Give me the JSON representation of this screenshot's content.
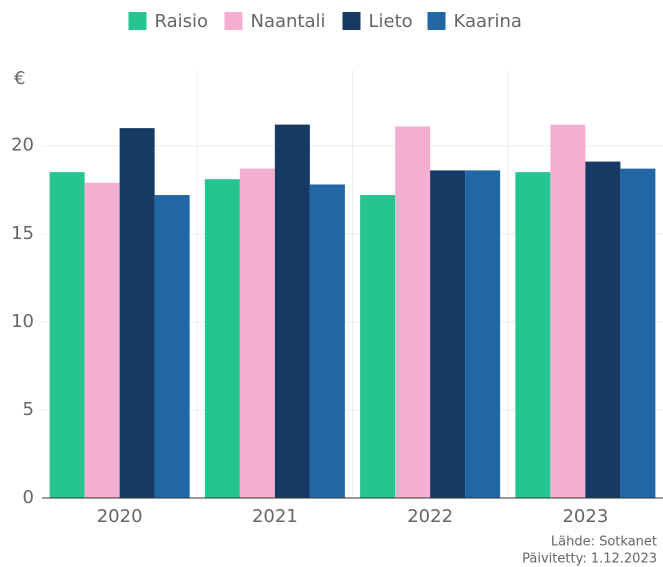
{
  "chart_data": {
    "type": "bar",
    "y_label": "€",
    "categories": [
      "2020",
      "2021",
      "2022",
      "2023"
    ],
    "series": [
      {
        "name": "Raisio",
        "color": "#26c491",
        "values": [
          18.5,
          18.1,
          17.2,
          18.5
        ]
      },
      {
        "name": "Naantali",
        "color": "#f4afd0",
        "values": [
          17.9,
          18.7,
          21.1,
          21.2
        ]
      },
      {
        "name": "Lieto",
        "color": "#163a63",
        "values": [
          21.0,
          21.2,
          18.6,
          19.1
        ]
      },
      {
        "name": "Kaarina",
        "color": "#2166a5",
        "values": [
          17.2,
          17.8,
          18.6,
          18.7
        ]
      }
    ],
    "ylim": [
      0,
      24.3
    ],
    "yticks": [
      0,
      5,
      10,
      15,
      20
    ],
    "grid": true,
    "legend": "top",
    "source": [
      "Lähde: Sotkanet",
      "Päivitetty: 1.12.2023"
    ]
  }
}
